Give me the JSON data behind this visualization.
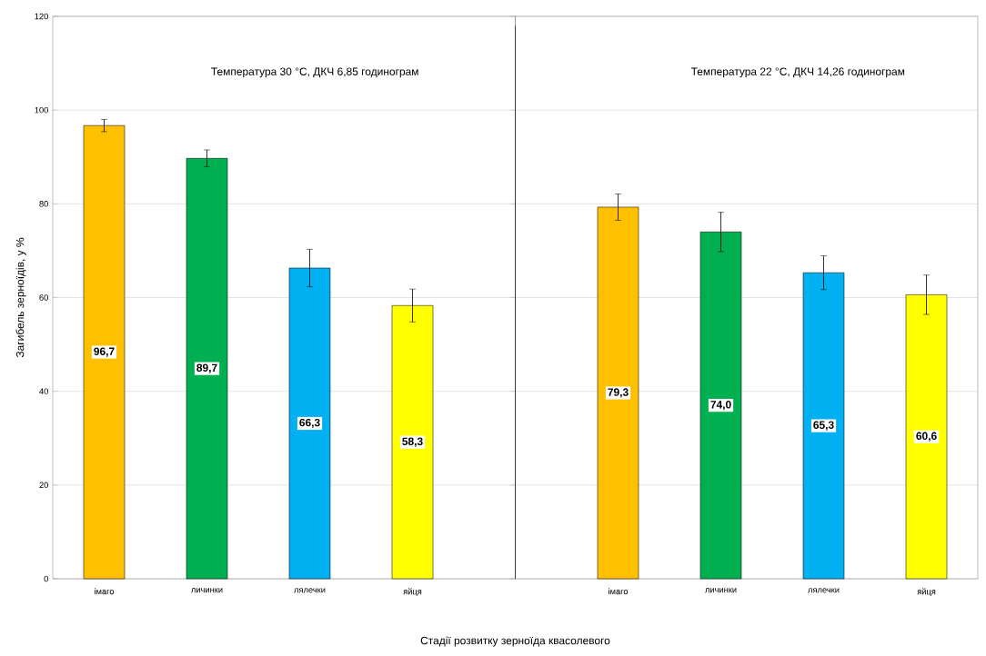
{
  "chart_data": [
    {
      "type": "bar",
      "xlabel": "Стадії розвитку зерноїда квасолевого",
      "ylabel": "Загибель зерноїдів, у %",
      "categories": [
        "імаго",
        "личинки",
        "лялечки",
        "яйця"
      ],
      "values": [
        96.7,
        89.7,
        66.3,
        58.3
      ],
      "colors": [
        "#ffc000",
        "#00b050",
        "#00b0f0",
        "#ffff00"
      ],
      "errors": [
        1.3,
        1.8,
        4.0,
        3.5
      ],
      "value_labels": [
        "96,7",
        "89,7",
        "66,3",
        "58,3"
      ],
      "annotations": [
        "Температура 30 °C, ДКЧ 6,85 годинограм"
      ],
      "ylim": [
        0,
        120
      ],
      "yticks": [
        0,
        20,
        40,
        60,
        80,
        100,
        120
      ],
      "grid": "y"
    },
    {
      "type": "bar",
      "categories": [
        "імаго",
        "личинки",
        "лялечки",
        "яйця"
      ],
      "values": [
        79.3,
        74.0,
        65.3,
        60.6
      ],
      "colors": [
        "#ffc000",
        "#00b050",
        "#00b0f0",
        "#ffff00"
      ],
      "errors": [
        2.8,
        4.2,
        3.6,
        4.2
      ],
      "value_labels": [
        "79,3",
        "74,0",
        "65,3",
        "60,6"
      ],
      "annotations": [
        "Температура 22 °C, ДКЧ 14,26 годинограм"
      ],
      "ylim": [
        0,
        120
      ],
      "yticks": [
        0,
        20,
        40,
        60,
        80,
        100,
        120
      ],
      "grid": "y",
      "tick_labels": "x"
    }
  ]
}
